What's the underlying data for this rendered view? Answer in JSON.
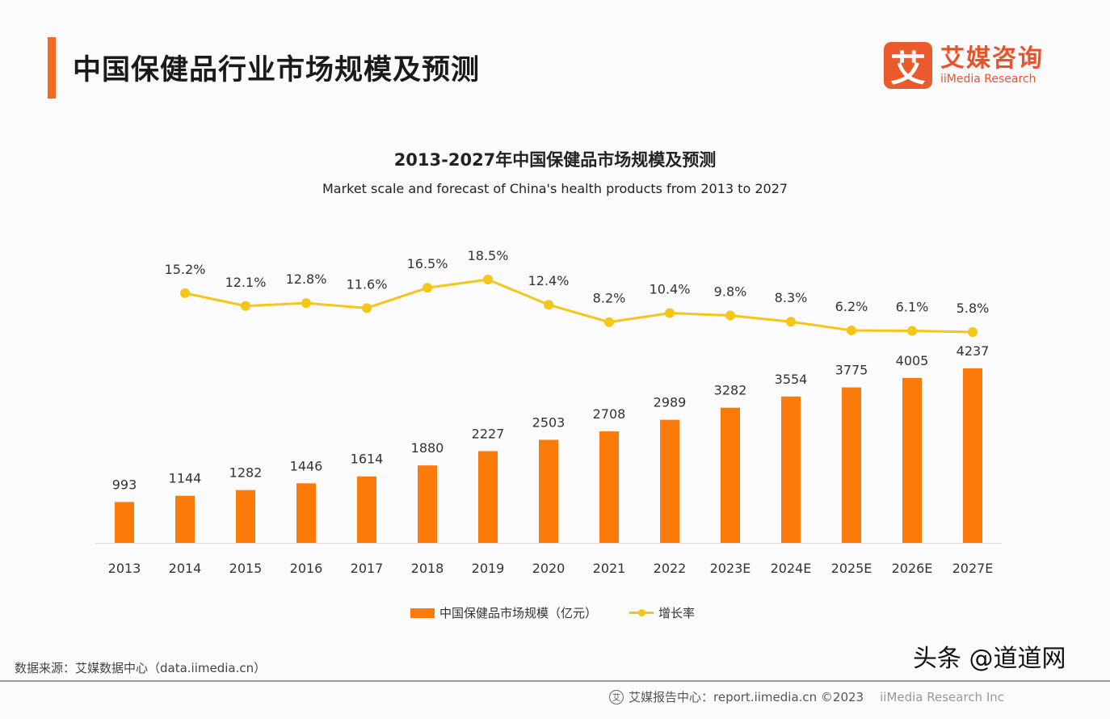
{
  "header": {
    "title": "中国保健品行业市场规模及预测",
    "accent_color": "#f26a21"
  },
  "logo": {
    "mark": "艾",
    "cn": "艾媒咨询",
    "en": "iiMedia Research"
  },
  "chart_data": {
    "type": "bar",
    "title": "2013-2027年中国保健品市场规模及预测",
    "subtitle": "Market scale and forecast of China's health products from 2013 to 2027",
    "categories": [
      "2013",
      "2014",
      "2015",
      "2016",
      "2017",
      "2018",
      "2019",
      "2020",
      "2021",
      "2022",
      "2023E",
      "2024E",
      "2025E",
      "2026E",
      "2027E"
    ],
    "series": [
      {
        "name": "中国保健品市场规模（亿元）",
        "type": "bar",
        "color": "#fa7a0a",
        "values": [
          993,
          1144,
          1282,
          1446,
          1614,
          1880,
          2227,
          2503,
          2708,
          2989,
          3282,
          3554,
          3775,
          4005,
          4237
        ]
      },
      {
        "name": "增长率",
        "type": "line",
        "color": "#f5c518",
        "values": [
          null,
          15.2,
          12.1,
          12.8,
          11.6,
          16.5,
          18.5,
          12.4,
          8.2,
          10.4,
          9.8,
          8.3,
          6.2,
          6.1,
          5.8
        ],
        "labels": [
          "",
          "15.2%",
          "12.1%",
          "12.8%",
          "11.6%",
          "16.5%",
          "18.5%",
          "12.4%",
          "8.2%",
          "10.4%",
          "9.8%",
          "8.3%",
          "6.2%",
          "6.1%",
          "5.8%"
        ]
      }
    ],
    "legend": "bottom",
    "grid": false
  },
  "legend": {
    "bar_label": "中国保健品市场规模（亿元）",
    "line_label": "增长率"
  },
  "source": "数据来源：艾媒数据中心（data.iimedia.cn）",
  "footer": {
    "text": "艾媒报告中心：report.iimedia.cn ©2023",
    "en": "iiMedia Research Inc"
  },
  "watermark": "头条 @道道网"
}
